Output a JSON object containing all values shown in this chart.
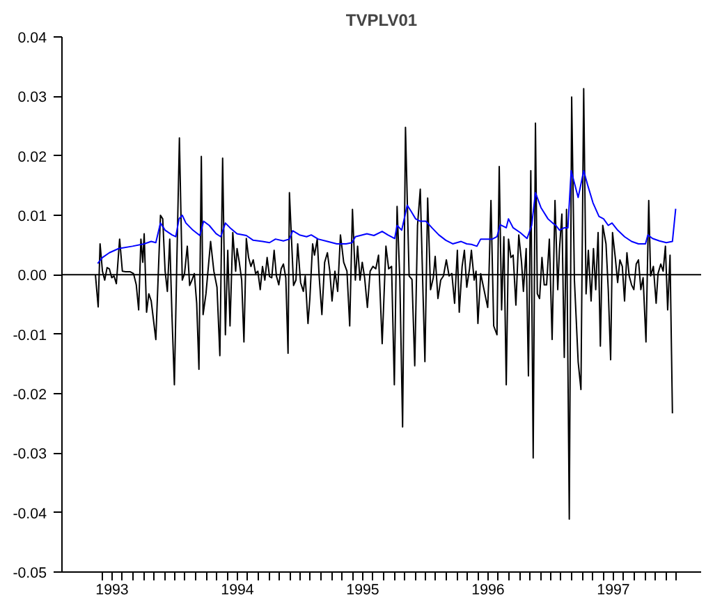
{
  "chart_data": {
    "type": "line",
    "title": "TVPLV01",
    "xlim": [
      1992.6,
      1997.7
    ],
    "ylim": [
      -0.05,
      0.04
    ],
    "yticks": [
      {
        "value": -0.05,
        "label": "-0.05"
      },
      {
        "value": -0.04,
        "label": "-0.04"
      },
      {
        "value": -0.03,
        "label": "-0.03"
      },
      {
        "value": -0.02,
        "label": "-0.02"
      },
      {
        "value": -0.01,
        "label": "-0.01"
      },
      {
        "value": 0,
        "label": "0.00"
      },
      {
        "value": 0.01,
        "label": "0.01"
      },
      {
        "value": 0.02,
        "label": "0.02"
      },
      {
        "value": 0.03,
        "label": "0.03"
      },
      {
        "value": 0.04,
        "label": "0.04"
      }
    ],
    "xticks": [
      {
        "value": 1992.917,
        "label": null
      },
      1993,
      {
        "value": 1993.083,
        "label": null
      },
      {
        "value": 1993.167,
        "label": null
      },
      {
        "value": 1993.25,
        "label": null
      },
      {
        "value": 1993.333,
        "label": null
      },
      {
        "value": 1993.417,
        "label": null
      },
      {
        "value": 1993.5,
        "label": null
      },
      {
        "value": 1993.583,
        "label": null
      },
      {
        "value": 1993.667,
        "label": null
      },
      {
        "value": 1993.75,
        "label": null
      },
      {
        "value": 1993.833,
        "label": null
      },
      {
        "value": 1993.917,
        "label": null
      },
      1994,
      {
        "value": 1994.083,
        "label": null
      },
      {
        "value": 1994.167,
        "label": null
      },
      {
        "value": 1994.25,
        "label": null
      },
      {
        "value": 1994.333,
        "label": null
      },
      {
        "value": 1994.417,
        "label": null
      },
      {
        "value": 1994.5,
        "label": null
      },
      {
        "value": 1994.583,
        "label": null
      },
      {
        "value": 1994.667,
        "label": null
      },
      {
        "value": 1994.75,
        "label": null
      },
      {
        "value": 1994.833,
        "label": null
      },
      {
        "value": 1994.917,
        "label": null
      },
      1995,
      {
        "value": 1995.083,
        "label": null
      },
      {
        "value": 1995.167,
        "label": null
      },
      {
        "value": 1995.25,
        "label": null
      },
      {
        "value": 1995.333,
        "label": null
      },
      {
        "value": 1995.417,
        "label": null
      },
      {
        "value": 1995.5,
        "label": null
      },
      {
        "value": 1995.583,
        "label": null
      },
      {
        "value": 1995.667,
        "label": null
      },
      {
        "value": 1995.75,
        "label": null
      },
      {
        "value": 1995.833,
        "label": null
      },
      {
        "value": 1995.917,
        "label": null
      },
      1996,
      {
        "value": 1996.083,
        "label": null
      },
      {
        "value": 1996.167,
        "label": null
      },
      {
        "value": 1996.25,
        "label": null
      },
      {
        "value": 1996.333,
        "label": null
      },
      {
        "value": 1996.417,
        "label": null
      },
      {
        "value": 1996.5,
        "label": null
      },
      {
        "value": 1996.583,
        "label": null
      },
      {
        "value": 1996.667,
        "label": null
      },
      {
        "value": 1996.75,
        "label": null
      },
      {
        "value": 1996.833,
        "label": null
      },
      {
        "value": 1996.917,
        "label": null
      },
      1997,
      {
        "value": 1997.083,
        "label": null
      },
      {
        "value": 1997.167,
        "label": null
      },
      {
        "value": 1997.25,
        "label": null
      },
      {
        "value": 1997.333,
        "label": null
      },
      {
        "value": 1997.417,
        "label": null
      },
      {
        "value": 1997.5,
        "label": null
      }
    ],
    "grid": false,
    "ref_lines": [
      {
        "axis": "y",
        "value": 0,
        "color": "#000000"
      }
    ],
    "series": [
      {
        "color": "#000000",
        "x": [
          1992.867,
          1992.889,
          1992.904,
          1992.923,
          1992.941,
          1992.96,
          1992.978,
          1992.997,
          1993.015,
          1993.034,
          1993.06,
          1993.082,
          1993.108,
          1993.145,
          1993.171,
          1993.193,
          1993.212,
          1993.23,
          1993.245,
          1993.256,
          1993.275,
          1993.293,
          1993.312,
          1993.349,
          1993.386,
          1993.404,
          1993.423,
          1993.441,
          1993.46,
          1993.478,
          1993.497,
          1993.515,
          1993.537,
          1993.56,
          1993.578,
          1993.6,
          1993.619,
          1993.637,
          1993.656,
          1993.675,
          1993.693,
          1993.712,
          1993.726,
          1993.749,
          1993.786,
          1993.812,
          1993.837,
          1993.86,
          1993.882,
          1993.904,
          1993.923,
          1993.941,
          1993.963,
          1993.986,
          1993.997,
          1994.015,
          1994.034,
          1994.052,
          1994.071,
          1994.089,
          1994.108,
          1994.126,
          1994.145,
          1994.163,
          1994.182,
          1994.2,
          1994.219,
          1994.237,
          1994.256,
          1994.274,
          1994.293,
          1994.311,
          1994.33,
          1994.349,
          1994.367,
          1994.386,
          1994.404,
          1994.415,
          1994.448,
          1994.467,
          1994.481,
          1994.504,
          1994.526,
          1994.541,
          1994.563,
          1994.578,
          1994.6,
          1994.615,
          1994.637,
          1994.652,
          1994.674,
          1994.696,
          1994.718,
          1994.737,
          1994.755,
          1994.778,
          1994.8,
          1994.822,
          1994.848,
          1994.874,
          1994.896,
          1994.918,
          1994.941,
          1994.959,
          1994.978,
          1994.996,
          1995.015,
          1995.037,
          1995.059,
          1995.081,
          1995.104,
          1995.126,
          1995.155,
          1995.185,
          1995.207,
          1995.23,
          1995.252,
          1995.274,
          1995.296,
          1995.318,
          1995.341,
          1995.37,
          1995.393,
          1995.415,
          1995.437,
          1995.459,
          1995.481,
          1995.496,
          1995.518,
          1995.541,
          1995.563,
          1995.578,
          1995.6,
          1995.622,
          1995.644,
          1995.667,
          1995.689,
          1995.711,
          1995.733,
          1995.755,
          1995.77,
          1995.793,
          1995.811,
          1995.83,
          1995.852,
          1995.867,
          1995.889,
          1995.904,
          1995.919,
          1995.941,
          1995.997,
          1996.008,
          1996.023,
          1996.045,
          1996.071,
          1996.089,
          1996.108,
          1996.126,
          1996.145,
          1996.163,
          1996.182,
          1996.2,
          1996.222,
          1996.245,
          1996.267,
          1996.282,
          1996.304,
          1996.322,
          1996.341,
          1996.36,
          1996.378,
          1996.393,
          1996.411,
          1996.43,
          1996.448,
          1996.467,
          1996.489,
          1996.511,
          1996.534,
          1996.556,
          1996.57,
          1996.589,
          1996.608,
          1996.626,
          1996.648,
          1996.667,
          1996.689,
          1996.719,
          1996.741,
          1996.763,
          1996.782,
          1996.8,
          1996.822,
          1996.841,
          1996.859,
          1996.878,
          1996.896,
          1996.915,
          1996.941,
          1996.959,
          1996.978,
          1996.993,
          1997.015,
          1997.034,
          1997.052,
          1997.071,
          1997.089,
          1997.108,
          1997.126,
          1997.145,
          1997.163,
          1997.182,
          1997.2,
          1997.219,
          1997.237,
          1997.26,
          1997.282,
          1997.297,
          1997.319,
          1997.341,
          1997.356,
          1997.378,
          1997.397,
          1997.415,
          1997.433,
          1997.452,
          1997.471
        ],
        "values": [
          0,
          -0.0054,
          0.0052,
          0.0006,
          -0.0009,
          0.0012,
          0.001,
          -0.0005,
          -0.0002,
          -0.0015,
          0.006,
          0.0006,
          0.0005,
          0.0005,
          0.0002,
          -0.0017,
          -0.0059,
          0.006,
          0.0021,
          0.0069,
          -0.0063,
          -0.0032,
          -0.0044,
          -0.0109,
          0.01,
          0.0094,
          0.0006,
          -0.0028,
          0.006,
          -0.007,
          -0.0185,
          0.0006,
          0.023,
          -0.0009,
          0.0002,
          0.0048,
          -0.0018,
          -0.0009,
          0.0002,
          -0.0048,
          -0.0159,
          0.0199,
          -0.0067,
          -0.0032,
          0.0056,
          0.0006,
          -0.0021,
          -0.0136,
          0.0196,
          -0.0101,
          0.0041,
          -0.0086,
          0.0071,
          0.0006,
          0.0044,
          0.0021,
          -0.0009,
          -0.0113,
          0.0061,
          0.0029,
          0.0014,
          0.0025,
          0.0002,
          0.0006,
          -0.0025,
          0.0014,
          -0.0009,
          0.0029,
          -0.0003,
          -0.0005,
          0.0041,
          -0.0002,
          -0.0017,
          0.001,
          0.0018,
          -0.0005,
          -0.0132,
          0.0138,
          -0.0018,
          -0.0009,
          0.0052,
          -0.0013,
          -0.0028,
          -0.0002,
          -0.0082,
          -0.004,
          0.0052,
          0.0033,
          0.006,
          -0.0002,
          -0.0067,
          0.0021,
          0.0037,
          0.0006,
          -0.0044,
          0.0006,
          -0.0028,
          0.0067,
          0.0021,
          0.0006,
          -0.0086,
          0.011,
          -0.0009,
          0.0048,
          -0.0009,
          0.0021,
          -0.0005,
          -0.0055,
          0.0006,
          0.0014,
          0.001,
          0.0033,
          -0.0116,
          0.0048,
          0.001,
          0.0014,
          -0.0185,
          0.0115,
          -0.0009,
          -0.0256,
          0.0248,
          -0.0002,
          -0.0008,
          -0.0153,
          0.0083,
          0.0144,
          -0.0032,
          -0.0146,
          0.0129,
          -0.0025,
          -0.0005,
          0.0031,
          -0.004,
          -0.0009,
          -0.0002,
          0.0025,
          -0.0002,
          0.0002,
          -0.0048,
          0.0041,
          -0.0063,
          0.0014,
          0.0041,
          -0.0021,
          0.001,
          0.0041,
          -0.0009,
          0.0006,
          -0.0082,
          0.0002,
          -0.0055,
          0.0006,
          0.0125,
          -0.0086,
          -0.0101,
          0.0182,
          -0.0059,
          0.0064,
          -0.0185,
          0.006,
          0.0029,
          0.0033,
          -0.0051,
          0.0067,
          0.0021,
          -0.0028,
          0.0044,
          -0.017,
          0.0175,
          -0.0308,
          0.0255,
          -0.0032,
          -0.004,
          0.0029,
          -0.0017,
          -0.0017,
          0.006,
          -0.0109,
          0.0125,
          -0.0025,
          0.0044,
          0.0102,
          -0.0139,
          0.011,
          -0.0411,
          0.0299,
          -0.0009,
          -0.0147,
          -0.0193,
          0.0313,
          -0.0032,
          0.0041,
          -0.0044,
          0.0044,
          -0.0025,
          0.0071,
          -0.012,
          0.0083,
          0.0052,
          -0.0025,
          -0.0143,
          0.0071,
          0.0029,
          -0.0013,
          0.0025,
          0.0014,
          -0.0044,
          0.0037,
          -0.0002,
          -0.0017,
          -0.0025,
          0.0018,
          0.0025,
          -0.0025,
          -0.0005,
          -0.0113,
          0.0125,
          -0.0002,
          0.0014,
          -0.0048,
          0.0002,
          0.0018,
          0.0006,
          0.0048,
          -0.0059,
          0.0033,
          -0.0233
        ]
      },
      {
        "color": "#0000ff",
        "x": [
          1992.885,
          1992.923,
          1992.978,
          1993.052,
          1993.163,
          1993.256,
          1993.312,
          1993.349,
          1993.386,
          1993.423,
          1993.478,
          1993.508,
          1993.534,
          1993.56,
          1993.589,
          1993.645,
          1993.7,
          1993.73,
          1993.775,
          1993.83,
          1993.867,
          1993.904,
          1993.941,
          1993.997,
          1994.071,
          1994.126,
          1994.2,
          1994.256,
          1994.304,
          1994.367,
          1994.415,
          1994.441,
          1994.496,
          1994.552,
          1994.589,
          1994.644,
          1994.718,
          1994.793,
          1994.867,
          1994.915,
          1994.941,
          1994.996,
          1995.033,
          1995.089,
          1995.155,
          1995.2,
          1995.255,
          1995.274,
          1995.311,
          1995.355,
          1995.385,
          1995.422,
          1995.459,
          1995.504,
          1995.552,
          1995.607,
          1995.663,
          1995.718,
          1995.785,
          1995.83,
          1995.867,
          1995.911,
          1995.941,
          1996.034,
          1996.071,
          1996.097,
          1996.126,
          1996.145,
          1996.163,
          1996.2,
          1996.256,
          1996.311,
          1996.348,
          1996.378,
          1996.422,
          1996.478,
          1996.515,
          1996.541,
          1996.57,
          1996.608,
          1996.637,
          1996.663,
          1996.719,
          1996.763,
          1996.793,
          1996.837,
          1996.885,
          1996.922,
          1996.959,
          1996.989,
          1997.034,
          1997.089,
          1997.145,
          1997.2,
          1997.256,
          1997.275,
          1997.312,
          1997.367,
          1997.422,
          1997.471,
          1997.497
        ],
        "values": [
          0.0019,
          0.0029,
          0.0037,
          0.0044,
          0.0048,
          0.0052,
          0.0056,
          0.0054,
          0.0087,
          0.0075,
          0.0067,
          0.0064,
          0.0094,
          0.01,
          0.0087,
          0.0075,
          0.0066,
          0.009,
          0.0083,
          0.0069,
          0.0064,
          0.0087,
          0.0079,
          0.0069,
          0.0066,
          0.0058,
          0.0056,
          0.0054,
          0.006,
          0.0057,
          0.006,
          0.0074,
          0.0067,
          0.0064,
          0.0067,
          0.006,
          0.0056,
          0.0052,
          0.0052,
          0.0054,
          0.0064,
          0.0067,
          0.0069,
          0.0066,
          0.0073,
          0.0067,
          0.0061,
          0.0083,
          0.0075,
          0.0117,
          0.0107,
          0.0094,
          0.009,
          0.009,
          0.0079,
          0.0067,
          0.0058,
          0.0052,
          0.0056,
          0.0052,
          0.0051,
          0.0048,
          0.006,
          0.006,
          0.0064,
          0.0084,
          0.0081,
          0.0079,
          0.0094,
          0.0079,
          0.0071,
          0.0061,
          0.0083,
          0.0138,
          0.0113,
          0.0094,
          0.0087,
          0.0083,
          0.0075,
          0.0079,
          0.0079,
          0.0175,
          0.013,
          0.0175,
          0.0152,
          0.0121,
          0.0098,
          0.0094,
          0.0083,
          0.0087,
          0.0075,
          0.0064,
          0.0056,
          0.0052,
          0.0052,
          0.0067,
          0.0061,
          0.0057,
          0.0054,
          0.0056,
          0.0111
        ]
      }
    ]
  }
}
